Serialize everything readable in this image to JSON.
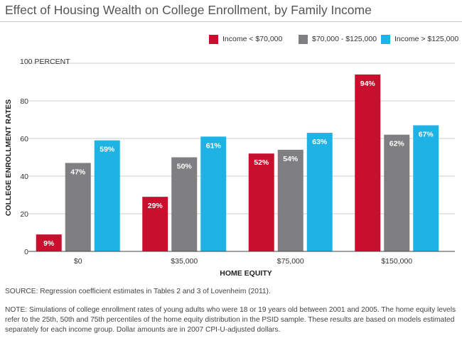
{
  "chart_data": {
    "type": "bar",
    "title": "Effect of Housing Wealth on College Enrollment, by Family Income",
    "xlabel": "HOME EQUITY",
    "ylabel": "COLLEGE ENROLLMENT RATES",
    "ylim": [
      0,
      100
    ],
    "yticks": [
      0,
      20,
      40,
      60,
      80,
      100
    ],
    "ytick_labels": [
      "0",
      "20",
      "40",
      "60",
      "80",
      "100 PERCENT"
    ],
    "categories": [
      "$0",
      "$35,000",
      "$75,000",
      "$150,000"
    ],
    "series": [
      {
        "name": "Income < $70,000",
        "values": [
          9,
          29,
          52,
          94
        ],
        "labels": [
          "9%",
          "29%",
          "52%",
          "94%"
        ],
        "color": "#c8102e"
      },
      {
        "name": "$70,000 - $125,000",
        "values": [
          47,
          50,
          54,
          62
        ],
        "labels": [
          "47%",
          "50%",
          "54%",
          "62%"
        ],
        "color": "#7f7f82"
      },
      {
        "name": "Income > $125,000",
        "values": [
          59,
          61,
          63,
          67
        ],
        "labels": [
          "59%",
          "61%",
          "63%",
          "67%"
        ],
        "color": "#1fb3e5"
      }
    ],
    "grid": true,
    "legend": "top-right"
  },
  "source": "SOURCE: Regression coefficient estimates in Tables 2 and 3 of Lovenheim (2011).",
  "note": "NOTE: Simulations of college enrollment rates of young adults who were 18 or 19 years old between 2001 and 2005. The home equity levels refer to the 25th, 50th and 75th percentiles of the home equity distribution in the PSID sample. These results are based on models estimated separately for each income group. Dollar amounts are in 2007 CPI-U-adjusted dollars."
}
